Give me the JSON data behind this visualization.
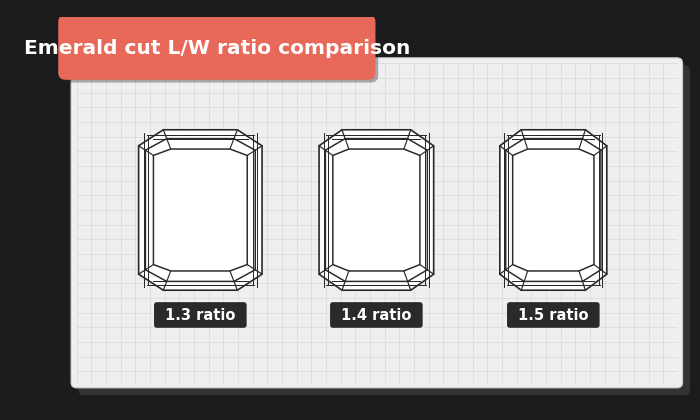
{
  "title": "Emerald cut L/W ratio comparison",
  "title_bg_color": "#e8685a",
  "title_text_color": "#ffffff",
  "card_bg_color": "#f0f0f0",
  "grid_color": "#d0d0d0",
  "diamond_line_color": "#2a2a2a",
  "label_bg_color": "#2a2a2a",
  "label_text_color": "#ffffff",
  "labels": [
    "1.3 ratio",
    "1.4 ratio",
    "1.5 ratio"
  ],
  "ratios": [
    1.3,
    1.4,
    1.5
  ],
  "fig_bg_color": "#1c1c1c"
}
